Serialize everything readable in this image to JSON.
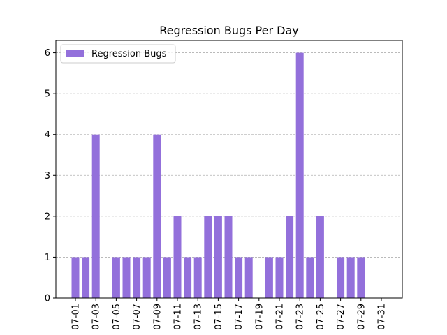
{
  "chart_data": {
    "type": "bar",
    "title": "Regression Bugs Per Day",
    "xlabel": "",
    "ylabel": "",
    "categories": [
      "07-01",
      "07-02",
      "07-03",
      "07-04",
      "07-05",
      "07-06",
      "07-07",
      "07-08",
      "07-09",
      "07-10",
      "07-11",
      "07-12",
      "07-13",
      "07-14",
      "07-15",
      "07-16",
      "07-17",
      "07-18",
      "07-19",
      "07-20",
      "07-21",
      "07-22",
      "07-23",
      "07-24",
      "07-25",
      "07-26",
      "07-27",
      "07-28",
      "07-29",
      "07-30",
      "07-31"
    ],
    "tick_labels": [
      "07-01",
      "07-03",
      "07-05",
      "07-07",
      "07-09",
      "07-11",
      "07-13",
      "07-15",
      "07-17",
      "07-19",
      "07-21",
      "07-23",
      "07-25",
      "07-27",
      "07-29",
      "07-31"
    ],
    "series": [
      {
        "name": "Regression Bugs",
        "color": "#9370db",
        "values": [
          1,
          1,
          4,
          0,
          1,
          1,
          1,
          1,
          4,
          1,
          2,
          1,
          1,
          2,
          2,
          2,
          1,
          1,
          0,
          1,
          1,
          2,
          6,
          1,
          2,
          0,
          1,
          1,
          1,
          0,
          0
        ]
      }
    ],
    "ylim": [
      0,
      6.3
    ],
    "yticks": [
      0,
      1,
      2,
      3,
      4,
      5,
      6
    ],
    "grid": "y-dashed",
    "legend": "top-left"
  }
}
